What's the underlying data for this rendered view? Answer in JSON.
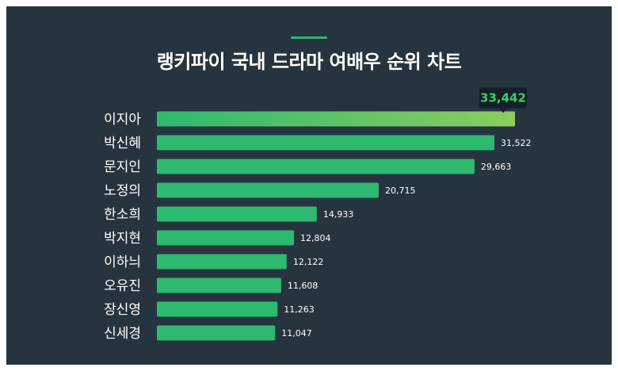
{
  "header": {
    "title": "랭키파이 국내 드라마 여배우 순위 차트"
  },
  "colors": {
    "background": "#263440",
    "bar": "#2db970",
    "bar_top_start": "#2db970",
    "bar_top_end": "#8ccd5e",
    "tooltip_bg": "#151f28",
    "accent": "#2db970"
  },
  "chart_data": {
    "type": "bar",
    "orientation": "horizontal",
    "title": "랭키파이 국내 드라마 여배우 순위 차트",
    "categories": [
      "이지아",
      "박신혜",
      "문지인",
      "노정의",
      "한소희",
      "박지현",
      "이하늬",
      "오유진",
      "장신영",
      "신세경"
    ],
    "values": [
      33442,
      31522,
      29663,
      20715,
      14933,
      12804,
      12122,
      11608,
      11263,
      11047
    ],
    "value_labels": [
      "33,442",
      "31,522",
      "29,663",
      "20,715",
      "14,933",
      "12,804",
      "12,122",
      "11,608",
      "11,263",
      "11,047"
    ],
    "xlim": [
      0,
      33442
    ],
    "grid": false,
    "legend": "none",
    "highlight_first": true
  }
}
